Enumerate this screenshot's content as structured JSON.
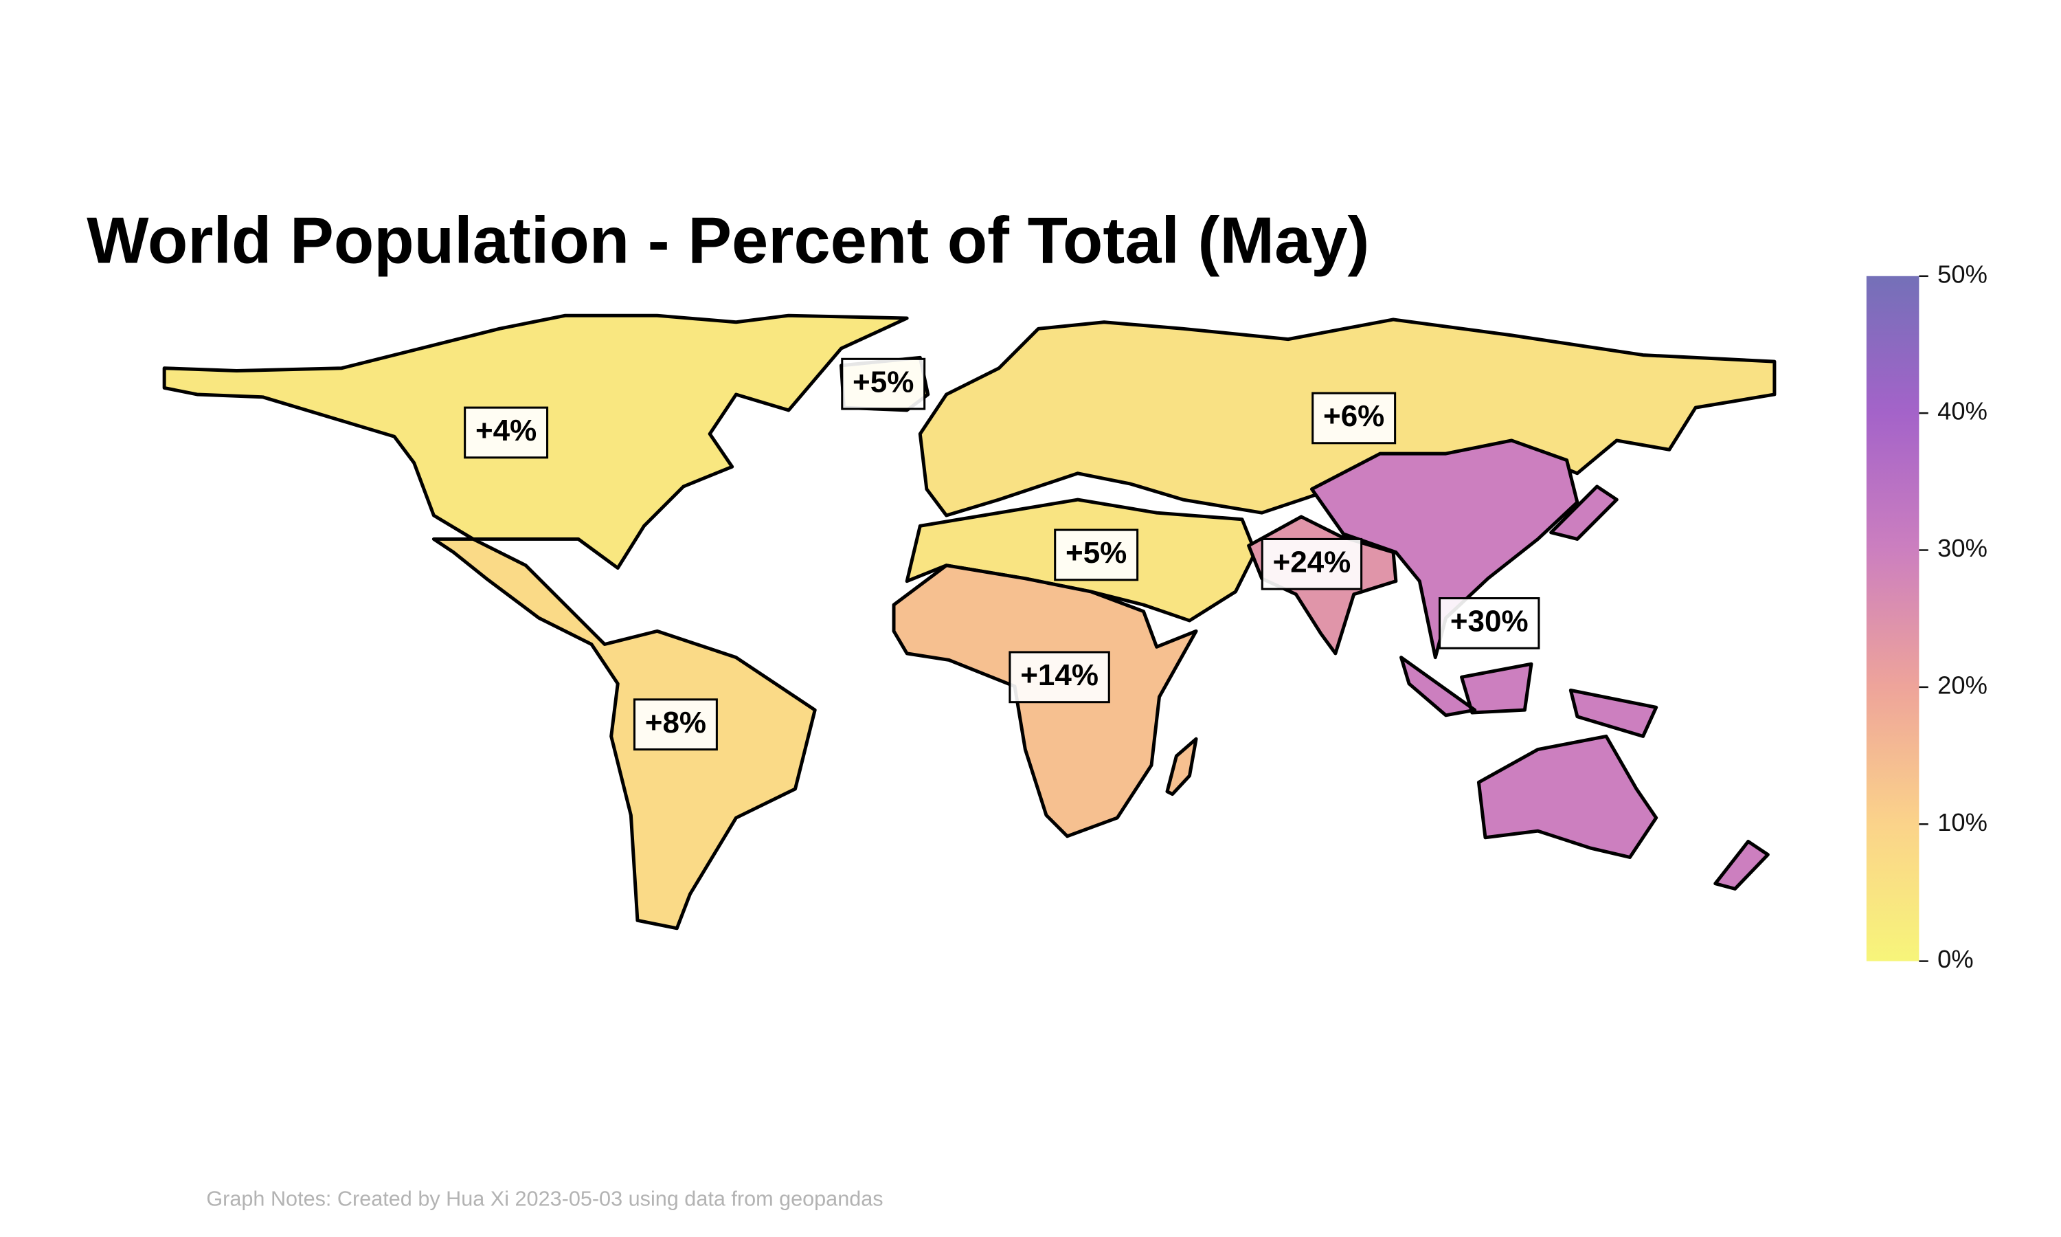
{
  "chart_data": {
    "type": "choropleth",
    "title": "World Population - Percent of Total (May)",
    "note": "Graph Notes: Created by Hua Xi 2023-05-03 using data from geopandas",
    "values": [
      4,
      5,
      6,
      5,
      8,
      14,
      24,
      30
    ],
    "value_labels": [
      "+4%",
      "+5%",
      "+6%",
      "+5%",
      "+8%",
      "+14%",
      "+24%",
      "+30%"
    ],
    "colorscale": [
      "#f7f57a",
      "#fbd38a",
      "#eea49a",
      "#cc7fbf",
      "#a463c9",
      "#7470b8"
    ],
    "clim": [
      0,
      50
    ],
    "cticks": [
      {
        "value": 0,
        "label": "0%"
      },
      {
        "value": 10,
        "label": "10%"
      },
      {
        "value": 20,
        "label": "20%"
      },
      {
        "value": 30,
        "label": "30%"
      },
      {
        "value": 40,
        "label": "40%"
      },
      {
        "value": 50,
        "label": "50%"
      }
    ]
  }
}
